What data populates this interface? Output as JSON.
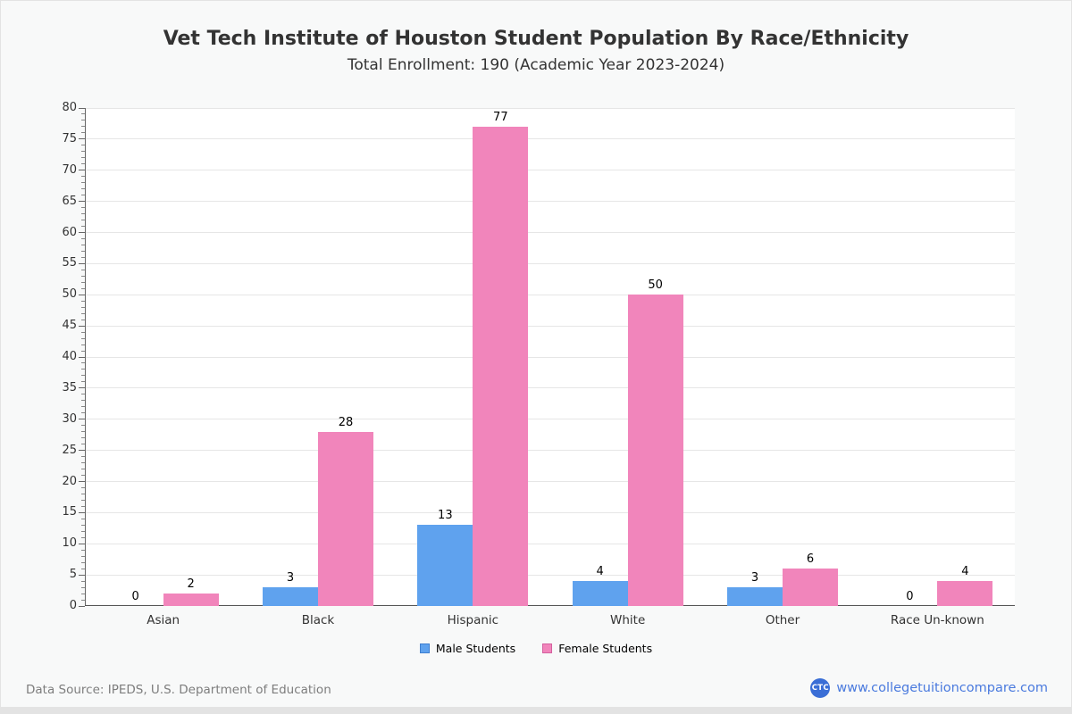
{
  "title": "Vet Tech Institute of Houston Student Population By Race/Ethnicity",
  "subtitle": "Total Enrollment: 190 (Academic Year 2023-2024)",
  "chart_data": {
    "type": "bar",
    "categories": [
      "Asian",
      "Black",
      "Hispanic",
      "White",
      "Other",
      "Race Un-known"
    ],
    "series": [
      {
        "name": "Male Students",
        "color": "#5fa2ee",
        "border_color": "#3f7fd0",
        "values": [
          0,
          3,
          13,
          4,
          3,
          0
        ]
      },
      {
        "name": "Female Students",
        "color": "#f185bb",
        "border_color": "#d4609f",
        "values": [
          2,
          28,
          77,
          50,
          6,
          4
        ]
      }
    ],
    "title": "Vet Tech Institute of Houston Student Population By Race/Ethnicity",
    "subtitle": "Total Enrollment: 190 (Academic Year 2023-2024)",
    "xlabel": "",
    "ylabel": "",
    "ylim": [
      0,
      80
    ],
    "ytick_step": 5,
    "yminor_step": 1,
    "grid": true,
    "legend_position": "bottom",
    "data_labels": true
  },
  "footer": {
    "data_source": "Data Source: IPEDS, U.S. Department of Education",
    "logo_text": "CTC",
    "website": "www.collegetuitioncompare.com"
  }
}
